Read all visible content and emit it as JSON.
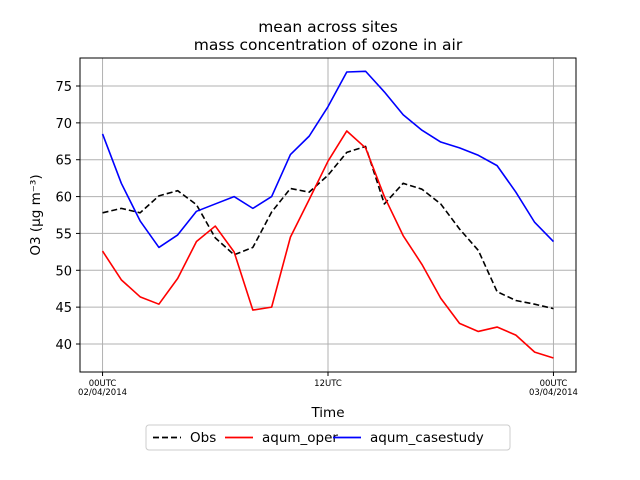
{
  "chart_data": {
    "type": "line",
    "title_lines": [
      "mean across sites",
      "mass concentration of ozone in air"
    ],
    "xlabel": "Time",
    "ylabel": "O3 (μg m⁻³)",
    "x_hours": [
      0,
      1,
      2,
      3,
      4,
      5,
      6,
      7,
      8,
      9,
      10,
      11,
      12,
      13,
      14,
      15,
      16,
      17,
      18,
      19,
      20,
      21,
      22,
      23,
      24
    ],
    "x_tick_hours": [
      0,
      12,
      24
    ],
    "x_tick_labels": [
      [
        "00UTC",
        "02/04/2014"
      ],
      [
        "12UTC",
        ""
      ],
      [
        "00UTC",
        "03/04/2014"
      ]
    ],
    "y_ticks": [
      40,
      45,
      50,
      55,
      60,
      65,
      70,
      75
    ],
    "xlim": [
      -1.2,
      25.2
    ],
    "ylim": [
      36.2,
      78.8
    ],
    "grid": true,
    "legend_placement": "below-center",
    "series": [
      {
        "name": "Obs",
        "color": "#000000",
        "dash": "dashed",
        "values": [
          57.8,
          58.4,
          57.8,
          60.1,
          60.8,
          58.9,
          54.4,
          52.1,
          53.1,
          57.9,
          61.1,
          60.6,
          62.9,
          66.0,
          66.8,
          59.0,
          61.8,
          61.0,
          59.0,
          55.6,
          52.7,
          47.1,
          45.9,
          45.4,
          44.8
        ]
      },
      {
        "name": "aqum_oper",
        "color": "#ff0000",
        "dash": "solid",
        "values": [
          52.6,
          48.7,
          46.4,
          45.4,
          48.9,
          53.9,
          56.0,
          52.5,
          44.6,
          45.0,
          54.5,
          59.6,
          64.8,
          68.9,
          66.6,
          60.0,
          54.7,
          50.8,
          46.2,
          42.8,
          41.7,
          42.3,
          41.2,
          38.9,
          38.1
        ]
      },
      {
        "name": "aqum_casestudy",
        "color": "#0000ff",
        "dash": "solid",
        "values": [
          68.5,
          61.8,
          56.7,
          53.1,
          54.8,
          58.0,
          59.0,
          60.0,
          58.4,
          60.0,
          65.7,
          68.2,
          72.2,
          76.9,
          77.0,
          74.2,
          71.1,
          69.0,
          67.4,
          66.6,
          65.6,
          64.2,
          60.6,
          56.5,
          53.9
        ]
      }
    ]
  }
}
